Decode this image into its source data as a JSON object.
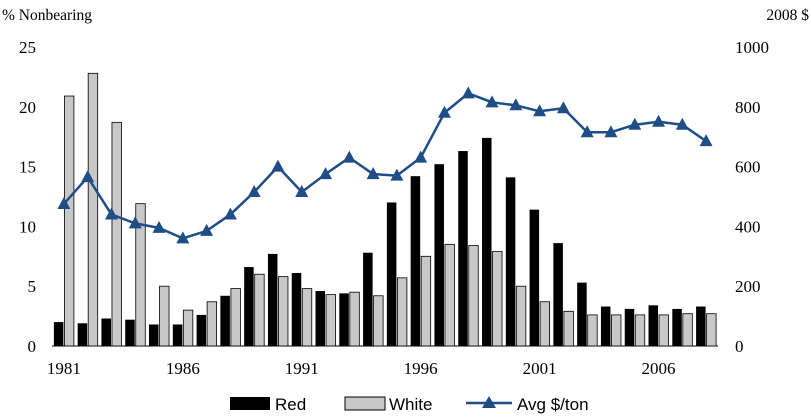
{
  "chart_data": {
    "type": "bar+line",
    "title": "",
    "y_left_label": "% Nonbearing",
    "y_right_label": "2008 $",
    "ylim_left": [
      0,
      25
    ],
    "ylim_right": [
      0,
      1000
    ],
    "y_left_ticks": [
      "0",
      "5",
      "10",
      "15",
      "20",
      "25"
    ],
    "y_right_ticks": [
      "0",
      "200",
      "400",
      "600",
      "800",
      "1000"
    ],
    "x_ticks": [
      "1981",
      "1986",
      "1991",
      "1996",
      "2001",
      "2006"
    ],
    "years": [
      1981,
      1982,
      1983,
      1984,
      1985,
      1986,
      1987,
      1988,
      1989,
      1990,
      1991,
      1992,
      1993,
      1994,
      1995,
      1996,
      1997,
      1998,
      1999,
      2000,
      2001,
      2002,
      2003,
      2004,
      2005,
      2006,
      2007,
      2008
    ],
    "series": [
      {
        "name": "Red",
        "kind": "bar",
        "axis": "left",
        "color": "#000000",
        "values": [
          2.0,
          1.9,
          2.3,
          2.2,
          1.8,
          1.8,
          2.6,
          4.2,
          6.6,
          7.7,
          6.1,
          4.6,
          4.4,
          7.8,
          12.0,
          14.2,
          15.2,
          16.3,
          17.4,
          14.1,
          11.4,
          8.6,
          5.3,
          3.3,
          3.1,
          3.4,
          3.1,
          3.3
        ]
      },
      {
        "name": "White",
        "kind": "bar",
        "axis": "left",
        "color": "#c8c8c8",
        "values": [
          20.9,
          22.8,
          18.7,
          11.9,
          5.0,
          3.0,
          3.7,
          4.8,
          6.0,
          5.8,
          4.8,
          4.3,
          4.5,
          4.2,
          5.7,
          7.5,
          8.5,
          8.4,
          7.9,
          5.0,
          3.7,
          2.9,
          2.6,
          2.6,
          2.6,
          2.6,
          2.7,
          2.7
        ]
      },
      {
        "name": "Avg $/ton",
        "kind": "line",
        "axis": "right",
        "color": "#1f4e86",
        "values": [
          475,
          565,
          440,
          410,
          395,
          360,
          385,
          440,
          515,
          600,
          515,
          575,
          630,
          575,
          570,
          630,
          780,
          845,
          815,
          805,
          785,
          795,
          715,
          715,
          740,
          750,
          740,
          685
        ]
      }
    ],
    "legend": {
      "position": "bottom",
      "entries": [
        "Red",
        "White",
        "Avg $/ton"
      ]
    }
  }
}
